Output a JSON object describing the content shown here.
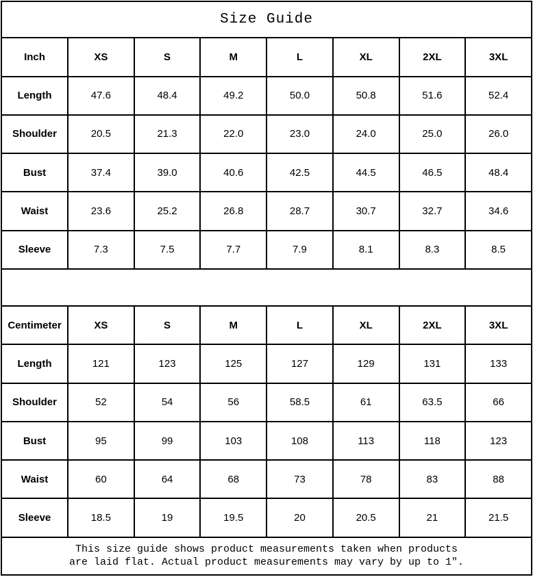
{
  "title": "Size Guide",
  "colors": {
    "border": "#000000",
    "background": "#ffffff",
    "text": "#000000"
  },
  "chart_data": [
    {
      "type": "table",
      "title": "Size Guide",
      "unit": "Inch",
      "header": [
        "Inch",
        "XS",
        "S",
        "M",
        "L",
        "XL",
        "2XL",
        "3XL"
      ],
      "rows": [
        [
          "Length",
          "47.6",
          "48.4",
          "49.2",
          "50.0",
          "50.8",
          "51.6",
          "52.4"
        ],
        [
          "Shoulder",
          "20.5",
          "21.3",
          "22.0",
          "23.0",
          "24.0",
          "25.0",
          "26.0"
        ],
        [
          "Bust",
          "37.4",
          "39.0",
          "40.6",
          "42.5",
          "44.5",
          "46.5",
          "48.4"
        ],
        [
          "Waist",
          "23.6",
          "25.2",
          "26.8",
          "28.7",
          "30.7",
          "32.7",
          "34.6"
        ],
        [
          "Sleeve",
          "7.3",
          "7.5",
          "7.7",
          "7.9",
          "8.1",
          "8.3",
          "8.5"
        ]
      ]
    },
    {
      "type": "table",
      "title": "Size Guide",
      "unit": "Centimeter",
      "header": [
        "Centimeter",
        "XS",
        "S",
        "M",
        "L",
        "XL",
        "2XL",
        "3XL"
      ],
      "rows": [
        [
          "Length",
          "121",
          "123",
          "125",
          "127",
          "129",
          "131",
          "133"
        ],
        [
          "Shoulder",
          "52",
          "54",
          "56",
          "58.5",
          "61",
          "63.5",
          "66"
        ],
        [
          "Bust",
          "95",
          "99",
          "103",
          "108",
          "113",
          "118",
          "123"
        ],
        [
          "Waist",
          "60",
          "64",
          "68",
          "73",
          "78",
          "83",
          "88"
        ],
        [
          "Sleeve",
          "18.5",
          "19",
          "19.5",
          "20",
          "20.5",
          "21",
          "21.5"
        ]
      ]
    }
  ],
  "footer": {
    "line1": "This size guide shows product measurements taken when products",
    "line2": "are laid flat. Actual product measurements may vary by up to 1″."
  }
}
